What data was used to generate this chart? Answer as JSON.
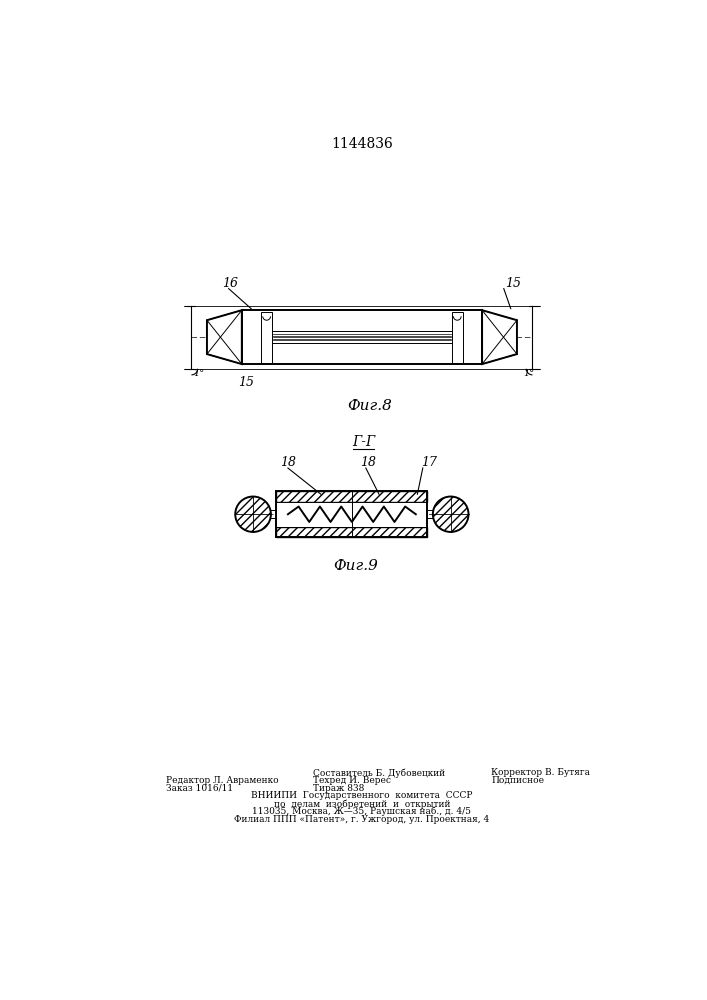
{
  "title": "1144836",
  "fig8_label": "Фиг.8",
  "fig9_label": "Фиг.9",
  "section_label": "Г-Г",
  "bg_color": "#ffffff",
  "line_color": "#000000",
  "footer_lines_left": [
    "Редактор Л. Авраменко",
    "Заказ 1016/11"
  ],
  "footer_center_lines": [
    "Составитель Б. Дубовецкий",
    "Техред И. Верес",
    "Тираж 838"
  ],
  "footer_right_lines": [
    "Корректор В. Бутяга",
    "Подписное"
  ],
  "footer_vnipi": "ВНИИПИ  Государственного  комитета  СССР",
  "footer_line2": "по  делам  изобретений  и  открытий",
  "footer_line3": "113035, Москва, Ж—35, Раушская наб., д. 4/5",
  "footer_line4": "Филиал ППП «Патент», г. Ужгород, ул. Проектная, 4"
}
